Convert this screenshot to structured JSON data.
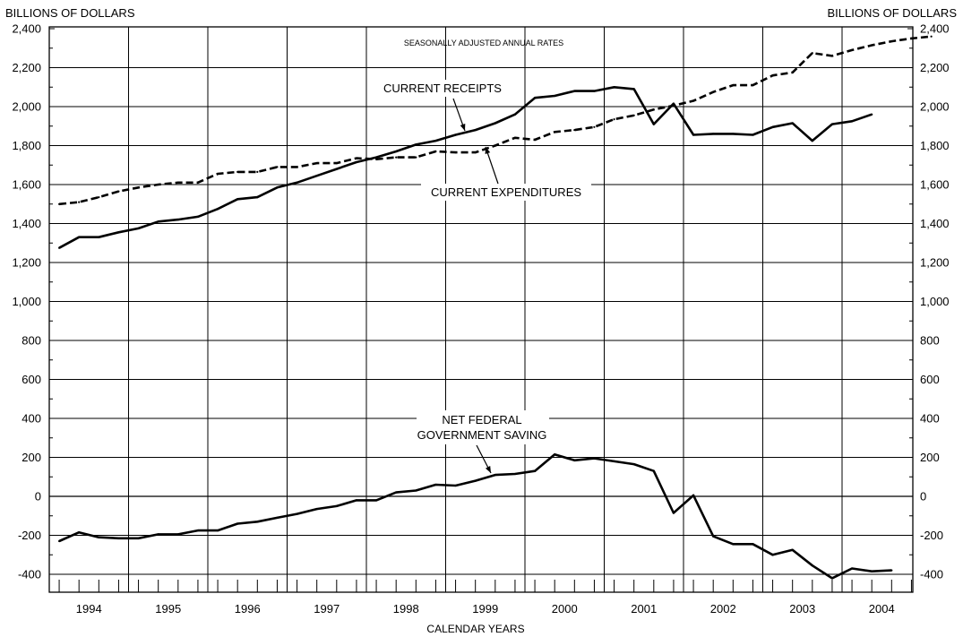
{
  "chart_data": {
    "type": "line",
    "title": "SEASONALLY ADJUSTED ANNUAL RATES",
    "ylabel_left": "BILLIONS OF DOLLARS",
    "ylabel_right": "BILLIONS OF DOLLARS",
    "xlabel": "CALENDAR YEARS",
    "ylim": [
      -450,
      2400
    ],
    "yticks": [
      -400,
      -200,
      0,
      200,
      400,
      600,
      800,
      1000,
      1200,
      1400,
      1600,
      1800,
      2000,
      2200,
      2400
    ],
    "ytick_labels": [
      "-400",
      "-200",
      "0",
      "200",
      "400",
      "600",
      "800",
      "1,000",
      "1,200",
      "1,400",
      "1,600",
      "1,800",
      "2,000",
      "2,200",
      "2,400"
    ],
    "years": [
      "1994",
      "1995",
      "1996",
      "1997",
      "1998",
      "1999",
      "2000",
      "2001",
      "2002",
      "2003",
      "2004"
    ],
    "x_unit": "quarter",
    "grid": true,
    "series": [
      {
        "name": "CURRENT RECEIPTS",
        "style": "solid",
        "values": [
          1275,
          1330,
          1330,
          1355,
          1375,
          1410,
          1420,
          1435,
          1475,
          1525,
          1535,
          1585,
          1610,
          1645,
          1680,
          1715,
          1740,
          1770,
          1805,
          1825,
          1855,
          1880,
          1915,
          1960,
          2045,
          2055,
          2080,
          2080,
          2100,
          2090,
          1910,
          2015,
          1855,
          1860,
          1860,
          1855,
          1895,
          1915,
          1825,
          1910,
          1925,
          1960
        ]
      },
      {
        "name": "CURRENT EXPENDITURES",
        "style": "dashed",
        "values": [
          1500,
          1510,
          1535,
          1565,
          1585,
          1600,
          1610,
          1610,
          1655,
          1665,
          1665,
          1690,
          1690,
          1710,
          1710,
          1735,
          1730,
          1740,
          1740,
          1770,
          1765,
          1765,
          1800,
          1840,
          1830,
          1870,
          1880,
          1895,
          1935,
          1955,
          1985,
          2005,
          2030,
          2075,
          2110,
          2110,
          2160,
          2175,
          2275,
          2260,
          2290,
          2315,
          2335,
          2350,
          2360
        ]
      },
      {
        "name": "NET FEDERAL GOVERNMENT SAVING",
        "style": "solid",
        "values": [
          -230,
          -185,
          -210,
          -215,
          -215,
          -195,
          -195,
          -175,
          -175,
          -140,
          -130,
          -110,
          -90,
          -65,
          -50,
          -20,
          -20,
          20,
          30,
          60,
          55,
          80,
          110,
          115,
          130,
          215,
          185,
          195,
          180,
          165,
          130,
          -85,
          5,
          -205,
          -245,
          -245,
          -300,
          -275,
          -355,
          -420,
          -370,
          -385,
          -380
        ]
      }
    ],
    "annotations": [
      {
        "text": "CURRENT RECEIPTS"
      },
      {
        "text": "CURRENT EXPENDITURES"
      },
      {
        "text": [
          "NET FEDERAL",
          "GOVERNMENT SAVING"
        ]
      }
    ]
  }
}
